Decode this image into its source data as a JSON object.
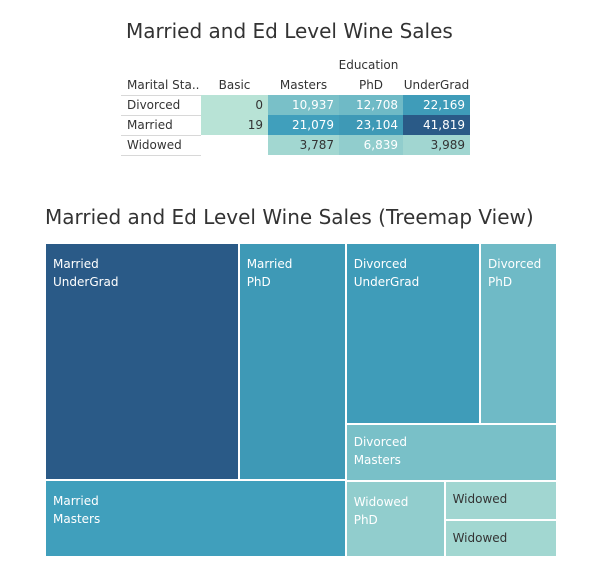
{
  "table_title": "Married and Ed Level Wine Sales",
  "treemap_title": "Married and Ed Level Wine Sales (Treemap View)",
  "chart_data": [
    {
      "type": "table",
      "title": "Married and Ed Level Wine Sales",
      "column_group_label": "Education",
      "row_header": "Marital Sta..",
      "columns": [
        "Basic",
        "Masters",
        "PhD",
        "UnderGrad"
      ],
      "rows": [
        {
          "label": "Divorced",
          "display": [
            "0",
            "10,937",
            "12,708",
            "22,169"
          ],
          "values": [
            0,
            10937,
            12708,
            22169
          ]
        },
        {
          "label": "Married",
          "display": [
            "19",
            "21,079",
            "23,104",
            "41,819"
          ],
          "values": [
            19,
            21079,
            23104,
            41819
          ]
        },
        {
          "label": "Widowed",
          "display": [
            "",
            "3,787",
            "6,839",
            "3,989"
          ],
          "values": [
            null,
            3787,
            6839,
            3989
          ]
        }
      ]
    },
    {
      "type": "treemap",
      "title": "Married and Ed Level Wine Sales (Treemap View)",
      "tiles": [
        {
          "marital": "Married",
          "education": "UnderGrad",
          "value": 41819,
          "label_1": "Married",
          "label_2": "UnderGrad"
        },
        {
          "marital": "Married",
          "education": "PhD",
          "value": 23104,
          "label_1": "Married",
          "label_2": "PhD"
        },
        {
          "marital": "Married",
          "education": "Masters",
          "value": 21079,
          "label_1": "Married",
          "label_2": "Masters"
        },
        {
          "marital": "Divorced",
          "education": "UnderGrad",
          "value": 22169,
          "label_1": "Divorced",
          "label_2": "UnderGrad"
        },
        {
          "marital": "Divorced",
          "education": "PhD",
          "value": 12708,
          "label_1": "Divorced",
          "label_2": "PhD"
        },
        {
          "marital": "Divorced",
          "education": "Masters",
          "value": 10937,
          "label_1": "Divorced",
          "label_2": "Masters"
        },
        {
          "marital": "Widowed",
          "education": "PhD",
          "value": 6839,
          "label_1": "Widowed",
          "label_2": "PhD"
        },
        {
          "marital": "Widowed",
          "education": "UnderGrad",
          "value": 3989,
          "label_1": "Widowed",
          "label_2": ""
        },
        {
          "marital": "Widowed",
          "education": "Masters",
          "value": 3787,
          "label_1": "Widowed",
          "label_2": ""
        }
      ]
    }
  ],
  "colors": {
    "scale_low": "#b8e3d6",
    "scale_mid": "#40a0bc",
    "scale_high": "#2a5a87"
  }
}
